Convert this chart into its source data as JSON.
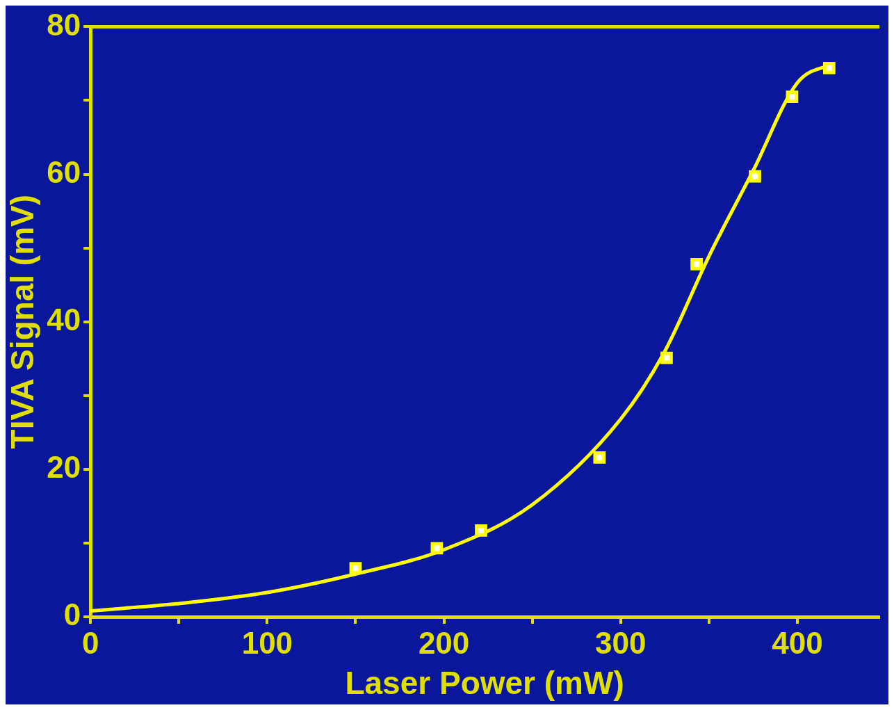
{
  "chart_data": {
    "type": "scatter",
    "xlabel": "Laser Power (mW)",
    "ylabel": "TIVA Signal (mV)",
    "xlim": [
      0,
      446
    ],
    "xticks": [
      0,
      {
        "value": 50,
        "label": null
      },
      100,
      {
        "value": 150,
        "label": null
      },
      200,
      {
        "value": 250,
        "label": null
      },
      300,
      {
        "value": 350,
        "label": null
      },
      400
    ],
    "ylim": [
      0,
      80
    ],
    "yticks": [
      0,
      {
        "value": 10,
        "label": null
      },
      20,
      {
        "value": 30,
        "label": null
      },
      40,
      {
        "value": 50,
        "label": null
      },
      60,
      {
        "value": 70,
        "label": null
      },
      80
    ],
    "grid": false,
    "legend": false,
    "series": [
      {
        "color": "#ffff00",
        "marker": "square",
        "x": [
          150,
          196,
          221,
          288,
          326,
          343,
          376,
          397,
          418
        ],
        "values": [
          6.6,
          9.3,
          11.7,
          21.6,
          35.1,
          47.8,
          59.7,
          70.5,
          74.4
        ]
      },
      {
        "type": "line",
        "color": "#ffff00",
        "marker": "none",
        "line_style": "solid",
        "x": [
          0,
          50,
          100,
          150,
          200,
          250,
          300,
          325,
          350,
          375,
          400,
          420
        ],
        "values": [
          0.8,
          1.8,
          3.3,
          5.8,
          9.1,
          15.2,
          26.8,
          36,
          48.9,
          60.5,
          72.4,
          75
        ]
      }
    ]
  }
}
